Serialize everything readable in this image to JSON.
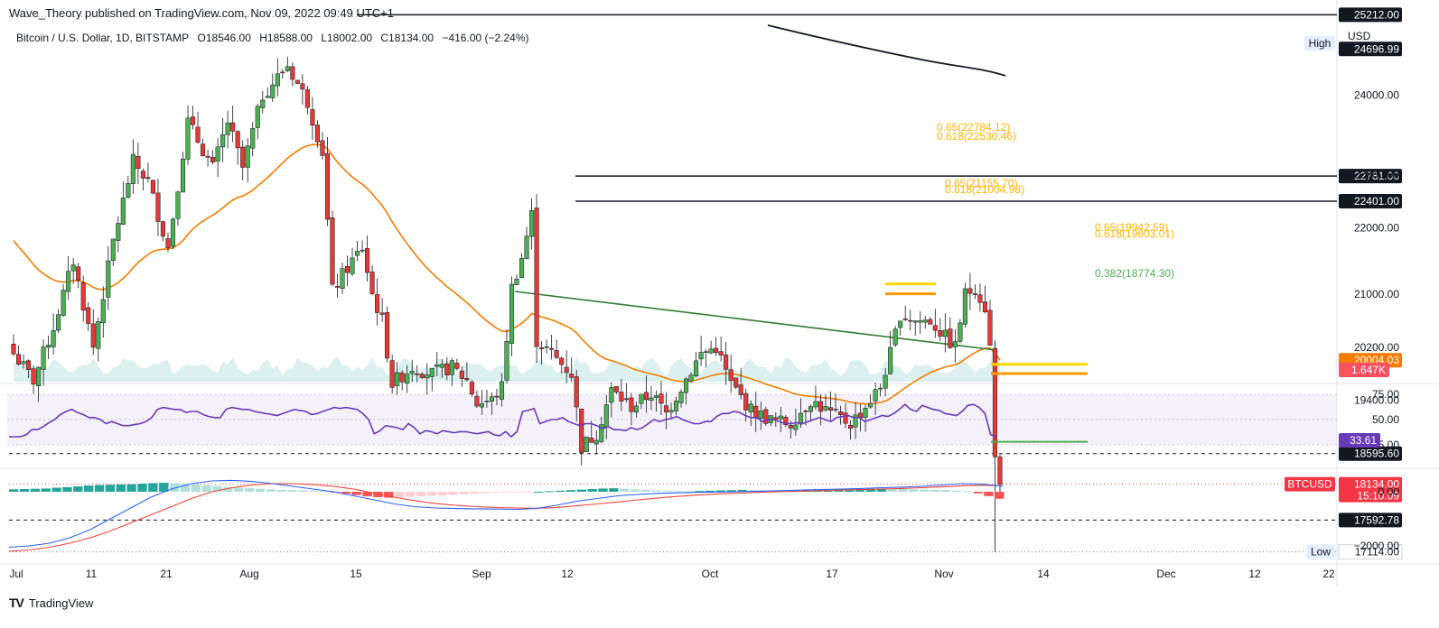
{
  "header": {
    "publisher": "Wave_Theory published on TradingView.com, Nov 09, 2022 09:49 UTC+1"
  },
  "symbol": {
    "name": "Bitcoin / U.S. Dollar, 1D, BITSTAMP",
    "open": "O18546.00",
    "high": "H18588.00",
    "low": "L18002.00",
    "close": "C18134.00",
    "change": "−416.00 (−2.24%)"
  },
  "currency_label": "USD",
  "footer": {
    "brand": "TradingView"
  },
  "colors": {
    "up": "#4caf50",
    "down": "#e53935",
    "ema": "#f57c00",
    "ma200": "#131722",
    "rsi": "#673ab7",
    "macd": "#2962ff",
    "signal": "#f44336",
    "fib_yellow": "#ffd600",
    "fib_green": "#4caf50"
  },
  "chart_data": {
    "type": "candlestick",
    "title": "Bitcoin / U.S. Dollar, 1D, BITSTAMP",
    "ylim": [
      17000,
      25400
    ],
    "x_tick_labels": [
      "Jul",
      "11",
      "21",
      "Aug",
      "15",
      "Sep",
      "12",
      "Oct",
      "17",
      "Nov",
      "14",
      "Dec",
      "12",
      "22"
    ],
    "y_tick_labels": [
      "24000.00",
      "22800.00",
      "22000.00",
      "21000.00",
      "20200.00",
      "19400.00"
    ],
    "price_levels": [
      {
        "label": "25212.00",
        "value": 25212,
        "style": "solid"
      },
      {
        "label": "24696.99",
        "value": 24697,
        "style": "badge"
      },
      {
        "label": "22781.00",
        "value": 22781,
        "style": "solid"
      },
      {
        "label": "22401.00",
        "value": 22401,
        "style": "solid"
      },
      {
        "label": "20004.03",
        "value": 20004,
        "style": "badge"
      },
      {
        "label": "18595.60",
        "value": 18595.6,
        "style": "dashed"
      },
      {
        "label": "18134.00",
        "value": 18134,
        "style": "dotted"
      },
      {
        "label": "17592.78",
        "value": 17592.78,
        "style": "dashed"
      },
      {
        "label": "17114.00",
        "value": 17114,
        "style": "low"
      }
    ],
    "high_label": "High",
    "low_label": "Low",
    "current_symbol": "BTCUSD",
    "countdown": "15:10:09",
    "volume_label": "1.647K",
    "fib_labels": [
      {
        "text": "0.65(22784.12)",
        "price": 22784,
        "color": "#ffb300"
      },
      {
        "text": "0.618(22530.46)",
        "price": 22530,
        "color": "#ffb300"
      },
      {
        "text": "0.65(21155.70)",
        "price": 21155,
        "color": "#ffb300"
      },
      {
        "text": "0.618(21004.98)",
        "price": 21004.98,
        "color": "#ffb300"
      },
      {
        "text": "0.65(19942.59)",
        "price": 19942.59,
        "color": "#ffb300"
      },
      {
        "text": "0.618(19803.01)",
        "price": 19803.01,
        "color": "#ffb300"
      },
      {
        "text": "0.382(18774.30)",
        "price": 18774.3,
        "color": "#4caf50"
      }
    ],
    "rsi": {
      "ticks": [
        "75.00",
        "50.00",
        "25.00"
      ],
      "current": "33.61",
      "values": [
        33,
        33,
        33,
        35,
        40,
        40,
        43,
        47,
        50,
        55,
        58,
        60,
        57,
        55,
        52,
        52,
        50,
        46,
        48,
        46,
        44,
        44,
        45,
        46,
        48,
        52,
        60,
        62,
        61,
        60,
        60,
        57,
        58,
        58,
        55,
        53,
        52,
        52,
        60,
        62,
        61,
        60,
        60,
        58,
        57,
        56,
        55,
        54,
        56,
        58,
        60,
        59,
        58,
        55,
        56,
        58,
        60,
        62,
        61,
        62,
        61,
        60,
        56,
        50,
        36,
        39,
        44,
        43,
        42,
        40,
        46,
        42,
        36,
        39,
        38,
        36,
        39,
        38,
        37,
        38,
        38,
        37,
        36,
        37,
        38,
        35,
        34,
        38,
        33,
        38,
        58,
        59,
        61,
        46,
        48,
        50,
        50,
        52,
        48,
        46,
        44,
        46,
        46,
        44,
        41,
        43,
        40,
        40,
        39,
        42,
        40,
        42,
        46,
        50,
        48,
        50,
        51,
        53,
        50,
        48,
        46,
        46,
        48,
        48,
        53,
        56,
        56,
        58,
        57,
        54,
        52,
        52,
        48,
        50,
        50,
        48,
        46,
        46,
        47,
        46,
        48,
        50,
        52,
        50,
        48,
        52,
        53,
        54,
        52,
        52,
        48,
        50,
        52,
        54,
        53,
        56,
        60,
        65,
        60,
        58,
        64,
        62,
        60,
        59,
        56,
        55,
        54,
        58,
        64,
        65,
        62,
        56,
        35,
        33
      ]
    },
    "macd": {
      "ticks": [
        "0.00",
        "−2000.00"
      ],
      "hist": [
        90,
        100,
        110,
        120,
        150,
        170,
        200,
        230,
        250,
        260,
        270,
        280,
        300,
        320,
        330,
        320,
        300,
        270,
        240,
        210,
        180,
        150,
        130,
        110,
        90,
        70,
        60,
        50,
        40,
        30,
        -20,
        -70,
        -120,
        -170,
        -200,
        -220,
        -210,
        -190,
        -170,
        -150,
        -130,
        -110,
        -90,
        -70,
        -50,
        -30,
        -20,
        -10,
        -5,
        0,
        20,
        40,
        60,
        80,
        100,
        120,
        130,
        110,
        90,
        70,
        50,
        40,
        30,
        20,
        30,
        40,
        50,
        60,
        70,
        60,
        50,
        40,
        30,
        40,
        50,
        60,
        70,
        80,
        90,
        100,
        110,
        120,
        110,
        100,
        90,
        80,
        70,
        60,
        40,
        20,
        -60,
        -160,
        -260
      ],
      "macd": [
        -2050,
        -2000,
        -1900,
        -1700,
        -1400,
        -1000,
        -600,
        -200,
        100,
        300,
        400,
        420,
        380,
        300,
        200,
        100,
        0,
        -150,
        -300,
        -450,
        -550,
        -600,
        -620,
        -630,
        -640,
        -650,
        -620,
        -500,
        -350,
        -250,
        -150,
        -100,
        -60,
        -40,
        -20,
        -10,
        0,
        20,
        40,
        60,
        80,
        100,
        120,
        150,
        170,
        200,
        250,
        300,
        280,
        200
      ],
      "signal": [
        -2200,
        -2150,
        -2050,
        -1900,
        -1700,
        -1450,
        -1150,
        -850,
        -550,
        -250,
        0,
        150,
        250,
        300,
        300,
        270,
        200,
        100,
        -50,
        -200,
        -330,
        -430,
        -500,
        -550,
        -580,
        -600,
        -610,
        -580,
        -520,
        -450,
        -380,
        -300,
        -230,
        -170,
        -120,
        -80,
        -50,
        -20,
        0,
        20,
        40,
        60,
        80,
        100,
        120,
        150,
        180,
        220,
        240,
        220
      ]
    }
  }
}
